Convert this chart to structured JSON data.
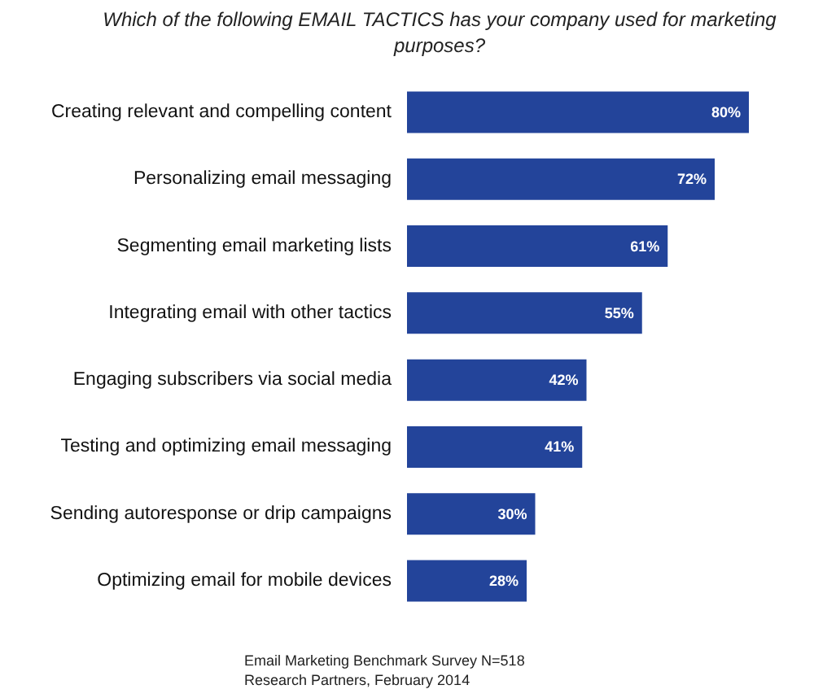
{
  "chart_data": {
    "type": "bar",
    "orientation": "horizontal",
    "title": "Which of the following EMAIL TACTICS has your company used for marketing purposes?",
    "categories": [
      "Creating relevant and compelling content",
      "Personalizing email messaging",
      "Segmenting email marketing lists",
      "Integrating email with other tactics",
      "Engaging subscribers via social media",
      "Testing and optimizing email messaging",
      "Sending autoresponse or drip campaigns",
      "Optimizing email for mobile devices"
    ],
    "values": [
      80,
      72,
      61,
      55,
      42,
      41,
      30,
      28
    ],
    "value_labels": [
      "80%",
      "72%",
      "61%",
      "55%",
      "42%",
      "41%",
      "30%",
      "28%"
    ],
    "color": "#23449a",
    "annotations": [
      "Email Marketing Benchmark Survey N=518",
      "Research Partners, February 2014"
    ]
  }
}
